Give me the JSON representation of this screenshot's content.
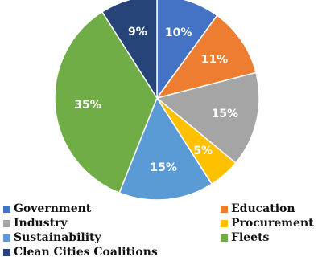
{
  "chart_data": {
    "type": "pie",
    "slices": [
      {
        "name": "Government",
        "value": 10,
        "label": "10%",
        "color": "#4472C4"
      },
      {
        "name": "Education",
        "value": 11,
        "label": "11%",
        "color": "#ED7D31"
      },
      {
        "name": "Industry",
        "value": 15,
        "label": "15%",
        "color": "#A5A5A5"
      },
      {
        "name": "Procurement",
        "value": 5,
        "label": "5%",
        "color": "#FFC000"
      },
      {
        "name": "Sustainability",
        "value": 15,
        "label": "15%",
        "color": "#5B9BD5"
      },
      {
        "name": "Fleets",
        "value": 35,
        "label": "35%",
        "color": "#70AD47"
      },
      {
        "name": "Clean Cities Coalitions",
        "value": 9,
        "label": "9%",
        "color": "#264478"
      }
    ],
    "start_angle": "top, clockwise",
    "legend_position": "bottom"
  }
}
